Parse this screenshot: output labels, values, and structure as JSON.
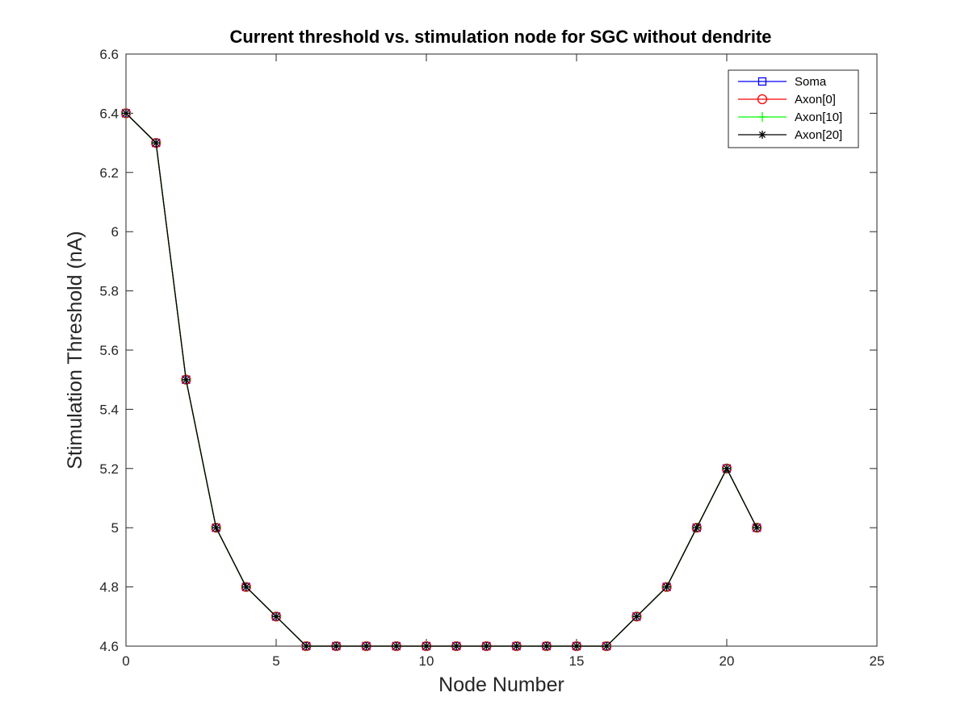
{
  "chart_data": {
    "type": "line",
    "title": "Current threshold vs. stimulation node for SGC without dendrite",
    "xlabel": "Node Number",
    "ylabel": "Stimulation Threshold (nA)",
    "xlim": [
      0,
      25
    ],
    "ylim": [
      4.6,
      6.6
    ],
    "xticks": [
      0,
      5,
      10,
      15,
      20,
      25
    ],
    "yticks": [
      4.6,
      4.8,
      5,
      5.2,
      5.4,
      5.6,
      5.8,
      6,
      6.2,
      6.4,
      6.6
    ],
    "xtick_labels": [
      "0",
      "5",
      "10",
      "15",
      "20",
      "25"
    ],
    "ytick_labels": [
      "4.6",
      "4.8",
      "5",
      "5.2",
      "5.4",
      "5.6",
      "5.8",
      "6",
      "6.2",
      "6.4",
      "6.6"
    ],
    "grid": false,
    "legend_position": "top-right",
    "x": [
      0,
      1,
      2,
      3,
      4,
      5,
      6,
      7,
      8,
      9,
      10,
      11,
      12,
      13,
      14,
      15,
      16,
      17,
      18,
      19,
      20,
      21
    ],
    "series": [
      {
        "name": "Soma",
        "color": "#0000ff",
        "marker": "square",
        "values": [
          6.4,
          6.3,
          5.5,
          5.0,
          4.8,
          4.7,
          4.6,
          4.6,
          4.6,
          4.6,
          4.6,
          4.6,
          4.6,
          4.6,
          4.6,
          4.6,
          4.6,
          4.7,
          4.8,
          5.0,
          5.2,
          5.0
        ]
      },
      {
        "name": "Axon[0]",
        "color": "#ff0000",
        "marker": "circle",
        "values": [
          6.4,
          6.3,
          5.5,
          5.0,
          4.8,
          4.7,
          4.6,
          4.6,
          4.6,
          4.6,
          4.6,
          4.6,
          4.6,
          4.6,
          4.6,
          4.6,
          4.6,
          4.7,
          4.8,
          5.0,
          5.2,
          5.0
        ]
      },
      {
        "name": "Axon[10]",
        "color": "#00ff00",
        "marker": "plus",
        "values": [
          6.4,
          6.3,
          5.5,
          5.0,
          4.8,
          4.7,
          4.6,
          4.6,
          4.6,
          4.6,
          4.6,
          4.6,
          4.6,
          4.6,
          4.6,
          4.6,
          4.6,
          4.7,
          4.8,
          5.0,
          5.2,
          5.0
        ]
      },
      {
        "name": "Axon[20]",
        "color": "#000000",
        "marker": "asterisk",
        "values": [
          6.4,
          6.3,
          5.5,
          5.0,
          4.8,
          4.7,
          4.6,
          4.6,
          4.6,
          4.6,
          4.6,
          4.6,
          4.6,
          4.6,
          4.6,
          4.6,
          4.6,
          4.7,
          4.8,
          5.0,
          5.2,
          5.0
        ]
      }
    ]
  }
}
